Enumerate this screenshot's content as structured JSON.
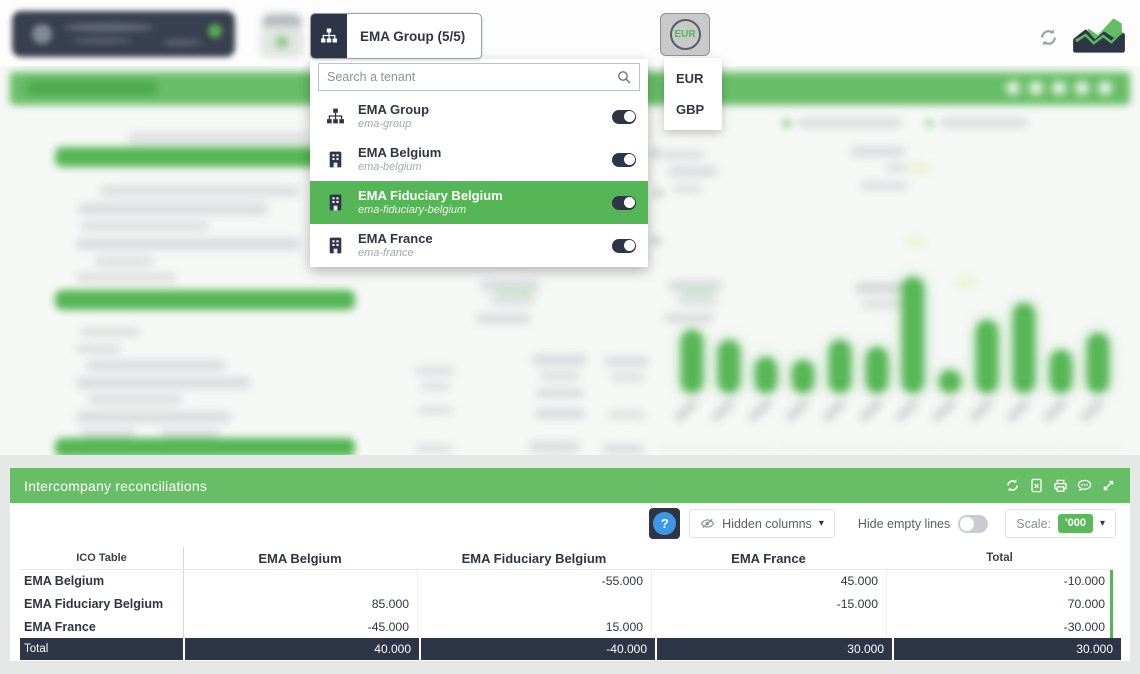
{
  "topbar": {
    "tenant_selector_label": "EMA Group (5/5)",
    "currency_selected": "EUR"
  },
  "tenant_dropdown": {
    "search_placeholder": "Search a tenant",
    "items": [
      {
        "name": "EMA Group",
        "slug": "ema-group",
        "icon": "hierarchy-icon",
        "enabled": true,
        "selected": false
      },
      {
        "name": "EMA Belgium",
        "slug": "ema-belgium",
        "icon": "building-icon",
        "enabled": true,
        "selected": false
      },
      {
        "name": "EMA Fiduciary Belgium",
        "slug": "ema-fiduciary-belgium",
        "icon": "building-icon",
        "enabled": true,
        "selected": true
      },
      {
        "name": "EMA France",
        "slug": "ema-france",
        "icon": "building-icon",
        "enabled": true,
        "selected": false
      }
    ]
  },
  "currency_dropdown": {
    "options": [
      "EUR",
      "GBP"
    ]
  },
  "panel": {
    "title": "Intercompany reconciliations",
    "header_icons": [
      "refresh-icon",
      "export-excel-icon",
      "print-icon",
      "comment-icon",
      "expand-icon"
    ],
    "controls": {
      "help_label": "?",
      "hidden_columns_label": "Hidden columns",
      "hide_empty_lines_label": "Hide empty lines",
      "hide_empty_lines_on": false,
      "scale_label": "Scale:",
      "scale_value": "'000",
      "caret": "▾"
    },
    "table": {
      "corner_header": "ICO Table",
      "columns": [
        "EMA Belgium",
        "EMA Fiduciary Belgium",
        "EMA France",
        "Total"
      ],
      "rows": [
        {
          "label": "EMA Belgium",
          "values": [
            "",
            "-55.000",
            "45.000",
            "-10.000"
          ]
        },
        {
          "label": "EMA Fiduciary Belgium",
          "values": [
            "85.000",
            "",
            "-15.000",
            "70.000"
          ]
        },
        {
          "label": "EMA France",
          "values": [
            "-45.000",
            "15.000",
            "",
            "-30.000"
          ]
        }
      ],
      "total_row": {
        "label": "Total",
        "values": [
          "40.000",
          "-40.000",
          "30.000",
          "30.000"
        ]
      }
    }
  },
  "colors": {
    "accent_green": "#5cb85c",
    "header_green": "#68bd67",
    "dark_navy": "#2e3547",
    "help_blue": "#3d96e6",
    "selected_row_green": "#56b556"
  }
}
